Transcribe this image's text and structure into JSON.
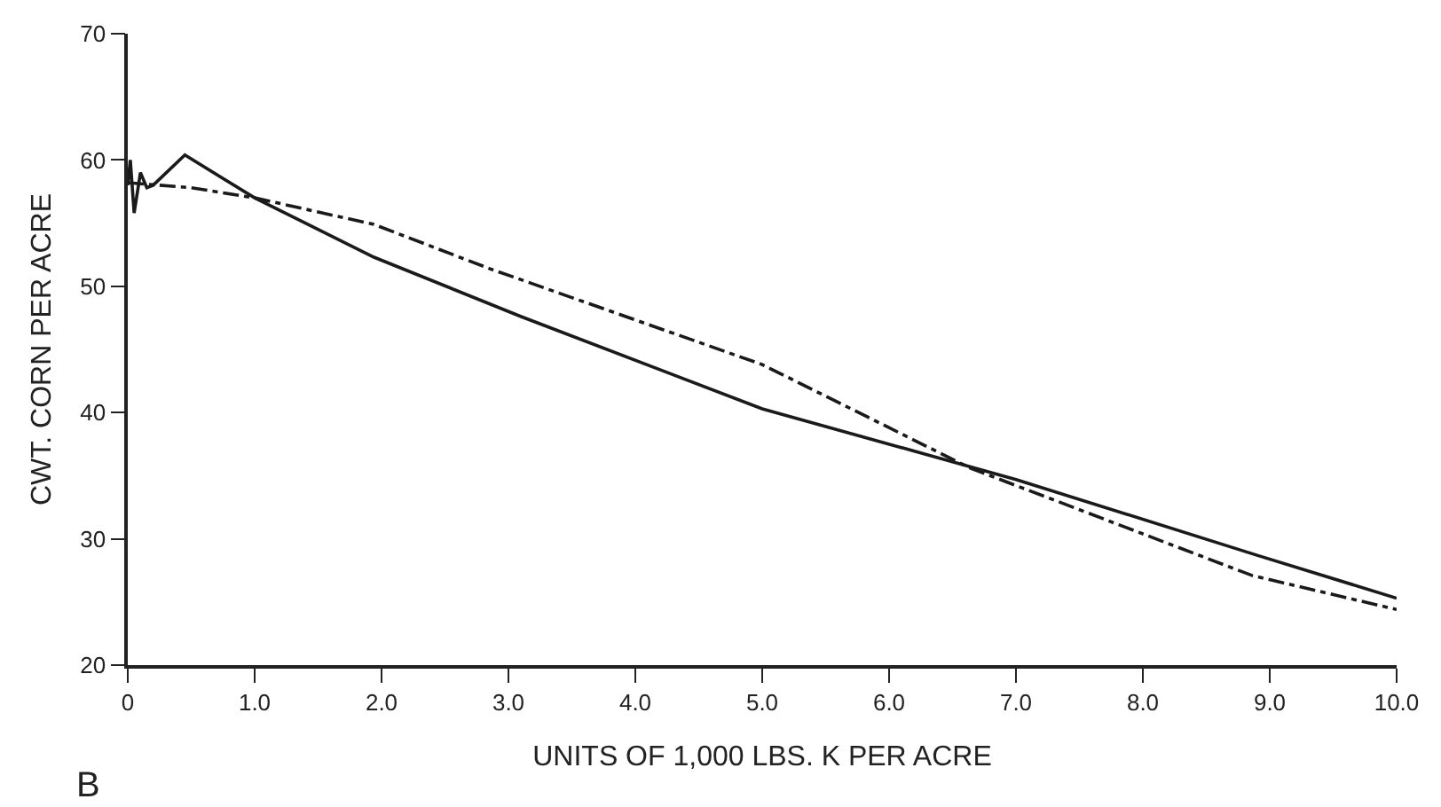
{
  "chart_data": {
    "type": "line",
    "xlabel": "UNITS OF 1,000 LBS. K PER ACRE",
    "ylabel": "CWT. CORN PER ACRE",
    "annotations": [
      "B"
    ],
    "xlim": [
      0,
      10
    ],
    "xticks": [
      0,
      {
        "value": 1,
        "label": "1.0"
      },
      {
        "value": 2,
        "label": "2.0"
      },
      {
        "value": 3,
        "label": "3.0"
      },
      {
        "value": 4,
        "label": "4.0"
      },
      {
        "value": 5,
        "label": "5.0"
      },
      {
        "value": 6,
        "label": "6.0"
      },
      {
        "value": 7,
        "label": "7.0"
      },
      {
        "value": 8,
        "label": "8.0"
      },
      {
        "value": 9,
        "label": "9.0"
      },
      {
        "value": 10,
        "label": "10.0"
      }
    ],
    "ylim": [
      20,
      70
    ],
    "yticks": [
      20,
      30,
      40,
      50,
      60,
      70
    ],
    "grid": false,
    "marker": "none",
    "series": [
      {
        "color": "#1a1a1a",
        "line_style": "solid",
        "x": [
          0,
          0.02,
          0.05,
          0.1,
          0.15,
          0.2,
          0.45,
          1.0,
          1.94,
          3.1,
          5.0,
          7.0,
          8.9,
          10.0
        ],
        "values": [
          58,
          60,
          55.8,
          59,
          57.8,
          58,
          60.4,
          57,
          52.3,
          47.6,
          40.3,
          34.7,
          28.7,
          25.3
        ]
      },
      {
        "color": "#1a1a1a",
        "line_style": "dashdot",
        "x": [
          0,
          0.5,
          1.0,
          1.94,
          2.85,
          5.0,
          6.64,
          8.86,
          10.0
        ],
        "values": [
          58.2,
          57.8,
          57,
          54.9,
          51.4,
          43.8,
          35.6,
          27.1,
          24.4
        ]
      }
    ]
  }
}
